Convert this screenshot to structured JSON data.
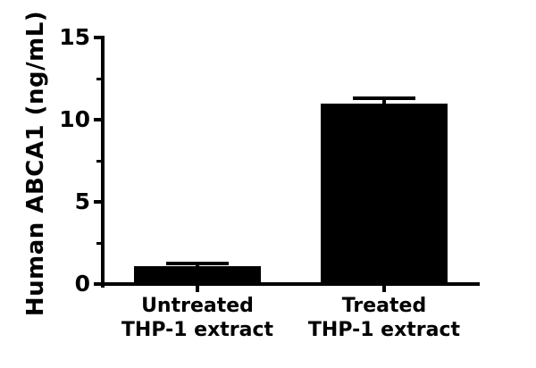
{
  "chart_data": {
    "type": "bar",
    "title": "",
    "ylabel": "Human ABCA1 (ng/mL)",
    "xlabel": "",
    "categories": [
      "Untreated THP-1 extract",
      "Treated THP-1 extract"
    ],
    "category_lines": [
      [
        "Untreated",
        "THP-1 extract"
      ],
      [
        "Treated",
        "THP-1 extract"
      ]
    ],
    "values": [
      1.1,
      11.0
    ],
    "errors": [
      0.15,
      0.3
    ],
    "error_style": "upper-only",
    "ylim": [
      0,
      15
    ],
    "yticks": [
      0,
      5,
      10,
      15
    ],
    "ytick_labels": [
      "0",
      "5",
      "10",
      "15"
    ],
    "yticks_minor": [
      2.5,
      7.5,
      12.5
    ],
    "bar_color": "#000000",
    "axis_color": "#000000",
    "background": "#ffffff",
    "grid": false,
    "legend": false
  }
}
